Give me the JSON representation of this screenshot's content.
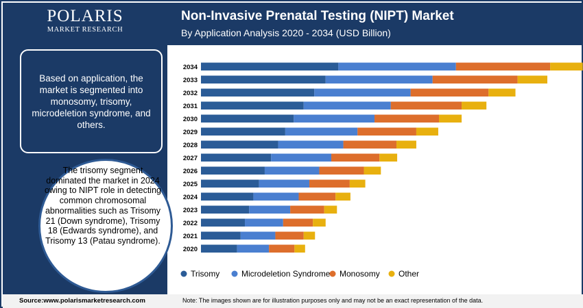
{
  "brand": {
    "name": "POLARIS",
    "tagline": "MARKET RESEARCH"
  },
  "header": {
    "title": "Non-Invasive Prenatal Testing (NIPT) Market",
    "subtitle": "By Application Analysis 2020 - 2034 (USD Billion)"
  },
  "sidebar": {
    "segment_text": "Based on application, the market is segmented into monosomy, trisomy, microdeletion syndrome, and others.",
    "highlight_text": "The trisomy segment dominated the market in 2024 owing to NIPT role in detecting common chromosomal abnormalities such as Trisomy 21 (Down syndrome), Trisomy 18 (Edwards syndrome), and Trisomy 13 (Patau syndrome)."
  },
  "footer": {
    "source": "Source:www.polarismarketresearch.com",
    "note": "Note: The images shown are for illustration purposes only and may not be an exact representation of the data."
  },
  "colors": {
    "trisomy": "#2b5c97",
    "microdeletion": "#4a7fd0",
    "monosomy": "#dd6e2c",
    "other": "#e8b00f",
    "navy": "#1b3a66"
  },
  "chart_data": {
    "type": "bar",
    "orientation": "horizontal",
    "stacked": true,
    "categories": [
      "2034",
      "2033",
      "2032",
      "2031",
      "2030",
      "2029",
      "2028",
      "2027",
      "2026",
      "2025",
      "2024",
      "2023",
      "2022",
      "2021",
      "2020"
    ],
    "series": [
      {
        "name": "Trisomy",
        "color": "#2b5c97",
        "values": [
          19.4,
          17.6,
          16.0,
          14.5,
          13.1,
          11.9,
          10.9,
          9.9,
          9.0,
          8.2,
          7.4,
          6.8,
          6.2,
          5.6,
          5.1
        ]
      },
      {
        "name": "Microdeletion Syndrome",
        "color": "#4a7fd0",
        "values": [
          16.6,
          15.1,
          13.6,
          12.3,
          11.4,
          10.2,
          9.2,
          8.5,
          7.7,
          7.1,
          6.4,
          5.8,
          5.4,
          4.9,
          4.5
        ]
      },
      {
        "name": "Monosomy",
        "color": "#dd6e2c",
        "values": [
          13.3,
          12.0,
          11.0,
          10.0,
          9.1,
          8.3,
          7.5,
          6.8,
          6.3,
          5.7,
          5.2,
          4.8,
          4.2,
          4.0,
          3.6
        ]
      },
      {
        "name": "Other",
        "color": "#e8b00f",
        "values": [
          4.6,
          4.2,
          3.8,
          3.5,
          3.2,
          3.1,
          2.8,
          2.5,
          2.4,
          2.2,
          2.1,
          1.8,
          1.8,
          1.6,
          1.5
        ]
      }
    ],
    "xlim": [
      0,
      55
    ],
    "legend_position": "bottom",
    "grid": false
  }
}
